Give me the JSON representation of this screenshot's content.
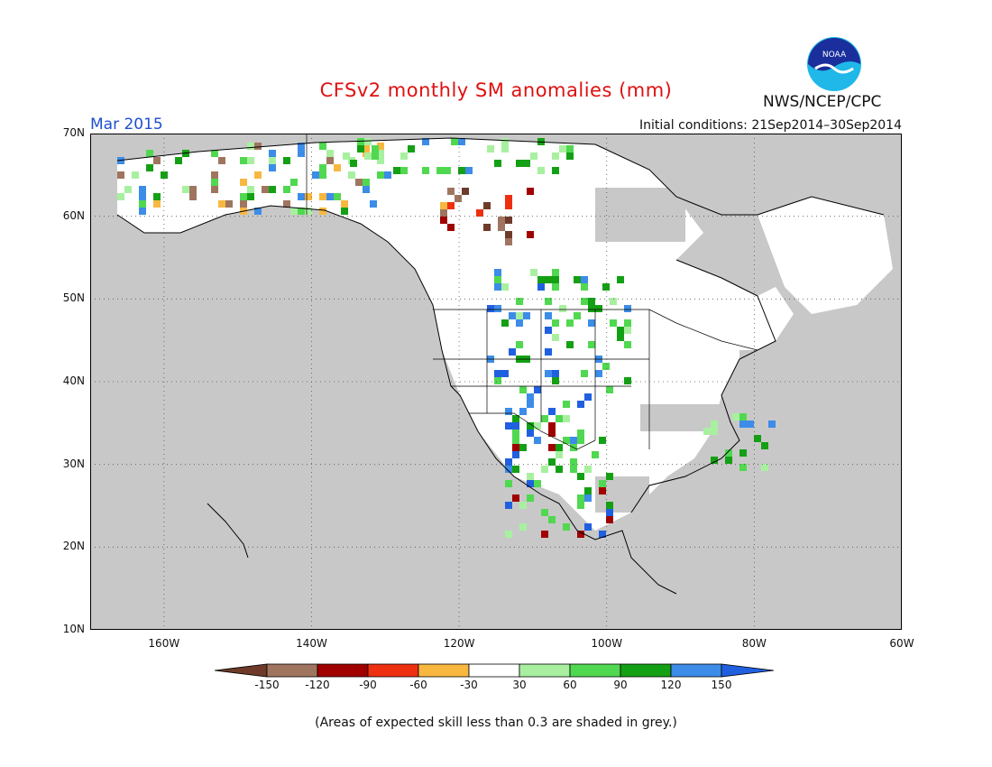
{
  "header": {
    "title": "CFSv2 monthly SM anomalies (mm)",
    "period": "Mar 2015",
    "initial_conditions": "Initial conditions: 21Sep2014–30Sep2014",
    "agency": "NWS/NCEP/CPC",
    "logo_text": "NOAA"
  },
  "map": {
    "region": "North America",
    "lat_range": [
      10,
      70
    ],
    "lon_range": [
      -170,
      -60
    ],
    "lat_labels": [
      "70N",
      "60N",
      "50N",
      "40N",
      "30N",
      "20N",
      "10N"
    ],
    "lon_labels": [
      "160W",
      "140W",
      "120W",
      "100W",
      "80W",
      "60W"
    ],
    "gridlines": "dotted",
    "colors": {
      "grey_low_skill": "#c8c8c8",
      "ocean_and_land_background": "#c8c8c8",
      "land_no_signal": "#ffffff",
      "border": "#000000"
    }
  },
  "legend": {
    "tick_labels": [
      "-150",
      "-120",
      "-90",
      "-60",
      "-30",
      "30",
      "60",
      "90",
      "120",
      "150"
    ],
    "bins": [
      {
        "range": "< -150",
        "color": "#6e3b2a"
      },
      {
        "range": "-150 to -120",
        "color": "#a07560"
      },
      {
        "range": "-120 to -90",
        "color": "#a00000"
      },
      {
        "range": "-90 to -60",
        "color": "#ee3010"
      },
      {
        "range": "-60 to -30",
        "color": "#f8b840"
      },
      {
        "range": "-30 to 30",
        "color": "#ffffff"
      },
      {
        "range": "30 to 60",
        "color": "#a8f0a0"
      },
      {
        "range": "60 to 90",
        "color": "#50d850"
      },
      {
        "range": "90 to 120",
        "color": "#14a014"
      },
      {
        "range": "120 to 150",
        "color": "#3c8ce8"
      },
      {
        "range": "> 150",
        "color": "#2060e0"
      }
    ]
  },
  "footnote": "(Areas of expected skill less than 0.3 are shaded in grey.)"
}
